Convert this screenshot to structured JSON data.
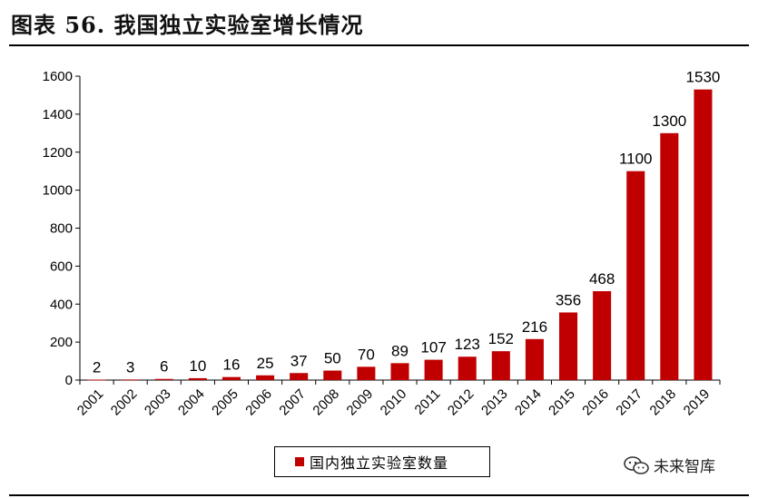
{
  "header": {
    "title": "图表 56. 我国独立实验室增长情况"
  },
  "chart_data": {
    "type": "bar",
    "title": "",
    "xlabel": "",
    "ylabel": "",
    "categories": [
      "2001",
      "2002",
      "2003",
      "2004",
      "2005",
      "2006",
      "2007",
      "2008",
      "2009",
      "2010",
      "2011",
      "2012",
      "2013",
      "2014",
      "2015",
      "2016",
      "2017",
      "2018",
      "2019"
    ],
    "series": [
      {
        "name": "国内独立实验室数量",
        "values": [
          2,
          3,
          6,
          10,
          16,
          25,
          37,
          50,
          70,
          89,
          107,
          123,
          152,
          216,
          356,
          468,
          1100,
          1300,
          1530
        ]
      }
    ],
    "ylim": [
      0,
      1600
    ],
    "yticks": [
      0,
      200,
      400,
      600,
      800,
      1000,
      1200,
      1400,
      1600
    ],
    "grid": false,
    "legend": "bottom-center",
    "color": "#c00000"
  },
  "legend": {
    "label": "国内独立实验室数量"
  },
  "watermark": {
    "text": "未来智库",
    "icon": "wechat-icon"
  }
}
